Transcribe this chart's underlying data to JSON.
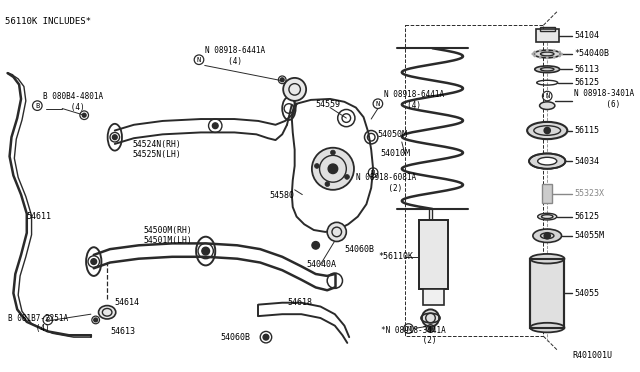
{
  "bg_color": "#ffffff",
  "line_color": "#2a2a2a",
  "gray_color": "#888888",
  "note_top_left": "56110K INCLUDES*",
  "note_bottom_right": "R401001U",
  "fig_width": 6.4,
  "fig_height": 3.72,
  "dpi": 100,
  "labels": {
    "n08918_6441a_1": "N 08918-6441A\n     (4)",
    "n08918_6441a_2": "N 08918-6441A\n     (4)",
    "b080b4_4801a": "B 080B4-4801A\n      (4)",
    "54524n": "54524N(RH)\n54525N(LH)",
    "54580": "54580",
    "54500m": "54500M(RH)\n54501M(LH)",
    "54611": "54611",
    "54614": "54614",
    "54613": "54613",
    "b081b7_2251a": "B 081B7-2251A\n      (4)",
    "54040a": "54040A",
    "54060b_r": "54060B",
    "54618": "54618",
    "54060b_b": "54060B",
    "54559": "54559",
    "54050m": "54050M",
    "54010m": "54010M",
    "n08918_6081a": "N 08918-6081A\n       (2)",
    "s56110k": "*56110K",
    "n08918_3441a": "*N 08918-3441A\n         (2)",
    "54104": "54104",
    "s54040b": "*54040B",
    "56113": "56113",
    "56125_1": "56125",
    "n08918_3401a": "N 08918-3401A\n       (6)",
    "56115": "56115",
    "54034": "54034",
    "55323x": "55323X",
    "56125_2": "56125",
    "54055m": "54055M",
    "54055": "54055"
  }
}
